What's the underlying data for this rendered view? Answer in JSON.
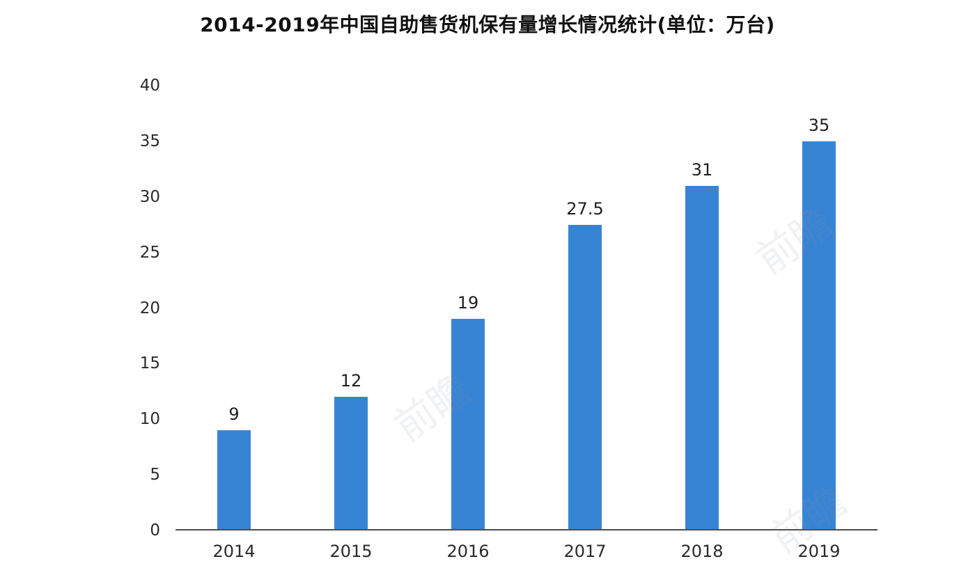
{
  "chart_data": {
    "type": "bar",
    "title": "2014-2019年中国自助售货机保有量增长情况统计(单位：万台)",
    "categories": [
      "2014",
      "2015",
      "2016",
      "2017",
      "2018",
      "2019"
    ],
    "values": [
      9,
      12,
      19,
      27.5,
      31,
      35
    ],
    "value_labels": [
      "9",
      "12",
      "19",
      "27.5",
      "31",
      "35"
    ],
    "xlabel": "",
    "ylabel": "",
    "ylim": [
      0,
      40
    ],
    "yticks": [
      0,
      5,
      10,
      15,
      20,
      25,
      30,
      35,
      40
    ],
    "grid": "off",
    "legend": "none",
    "bar_color": "#3884d4",
    "axis_color": "#4d4d4d"
  },
  "watermark": {
    "text": "前瞻"
  }
}
